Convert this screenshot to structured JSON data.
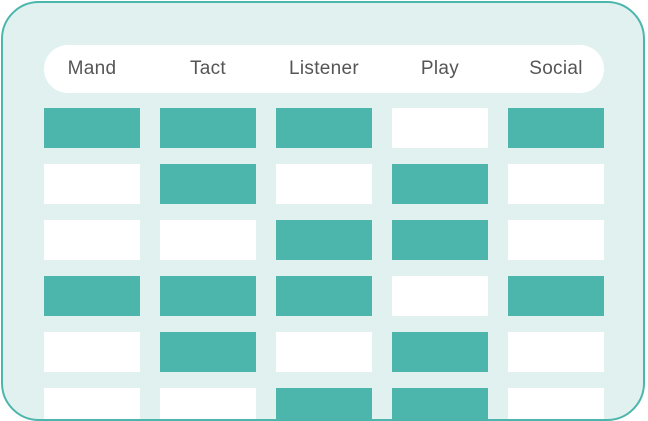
{
  "columns": [
    "Mand",
    "Tact",
    "Listener",
    "Play",
    "Social"
  ],
  "colors": {
    "accent": "#4db6ac",
    "background": "#e0f1f0",
    "cell_empty": "#ffffff",
    "header_text": "#555555"
  },
  "grid": {
    "rows": [
      [
        true,
        true,
        true,
        false,
        true
      ],
      [
        false,
        true,
        false,
        true,
        false
      ],
      [
        false,
        false,
        true,
        true,
        false
      ],
      [
        true,
        true,
        true,
        false,
        true
      ],
      [
        false,
        true,
        false,
        true,
        false
      ],
      [
        false,
        false,
        true,
        true,
        false
      ]
    ]
  }
}
